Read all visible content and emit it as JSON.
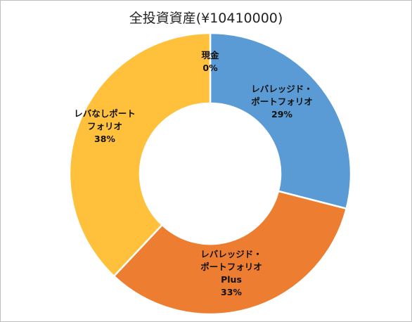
{
  "chart_data": {
    "type": "pie",
    "title": "全投資資産(¥10410000)",
    "donut": true,
    "slices": [
      {
        "label": [
          "現金"
        ],
        "value": 0,
        "percent_label": "0%",
        "color": "#A5A5A5"
      },
      {
        "label": [
          "レバレッジド・",
          "ポートフォリオ"
        ],
        "value": 29,
        "percent_label": "29%",
        "color": "#5B9BD5"
      },
      {
        "label": [
          "レバレッジド・",
          "ポートフォリオ",
          "Plus"
        ],
        "value": 33,
        "percent_label": "33%",
        "color": "#ED7D31"
      },
      {
        "label": [
          "レバなしポート",
          "フォリオ"
        ],
        "value": 38,
        "percent_label": "38%",
        "color": "#FFC13B"
      }
    ]
  }
}
